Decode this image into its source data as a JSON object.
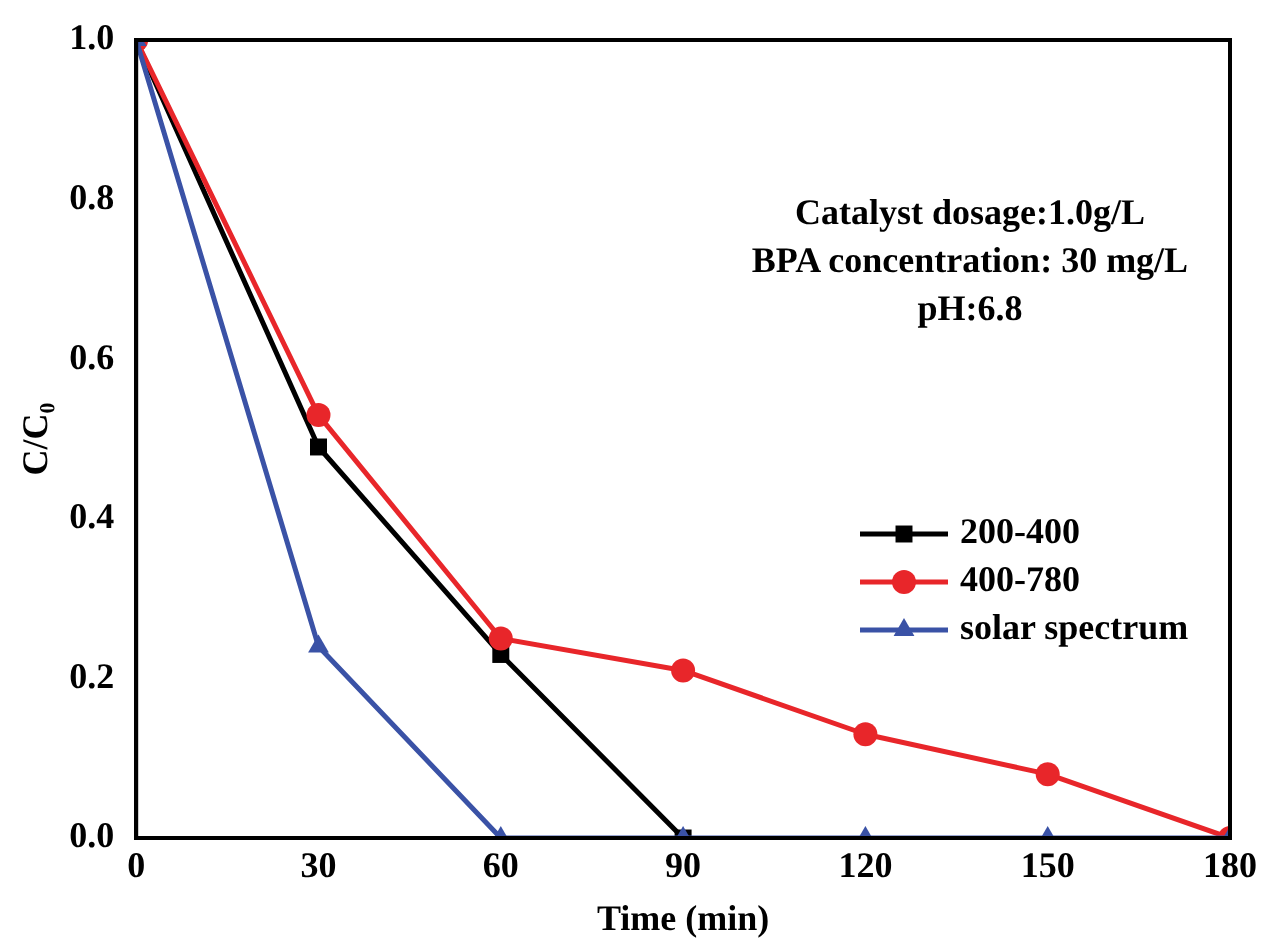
{
  "chart_data": {
    "type": "line",
    "xlabel": "Time (min)",
    "ylabel": "C/C₀",
    "x": [
      0,
      30,
      60,
      90,
      120,
      150,
      180
    ],
    "xlim": [
      0,
      180
    ],
    "xticks": [
      0,
      30,
      60,
      90,
      120,
      150,
      180
    ],
    "ylim": [
      0,
      1
    ],
    "yticks": [
      {
        "value": 0,
        "label": "0.0"
      },
      {
        "value": 0.2,
        "label": "0.2"
      },
      {
        "value": 0.4,
        "label": "0.4"
      },
      {
        "value": 0.6,
        "label": "0.6"
      },
      {
        "value": 0.8,
        "label": "0.8"
      },
      {
        "value": 1,
        "label": "1.0"
      }
    ],
    "grid": false,
    "legend": "bottom right",
    "line_style": "solid",
    "annotations": [
      "Catalyst dosage:1.0g/L",
      "BPA concentration: 30 mg/L",
      "pH:6.8"
    ],
    "series": [
      {
        "name": "200-400",
        "color": "#000000",
        "marker": "square",
        "values": [
          1,
          0.49,
          0.23,
          0,
          null,
          null,
          null
        ]
      },
      {
        "name": "400-780",
        "color": "#e8262a",
        "marker": "circle",
        "values": [
          1,
          0.53,
          0.25,
          0.21,
          0.13,
          0.08,
          0
        ]
      },
      {
        "name": "solar spectrum",
        "color": "#3a52a6",
        "marker": "triangle",
        "values": [
          1,
          0.24,
          0,
          0,
          0,
          0,
          0
        ]
      }
    ]
  }
}
